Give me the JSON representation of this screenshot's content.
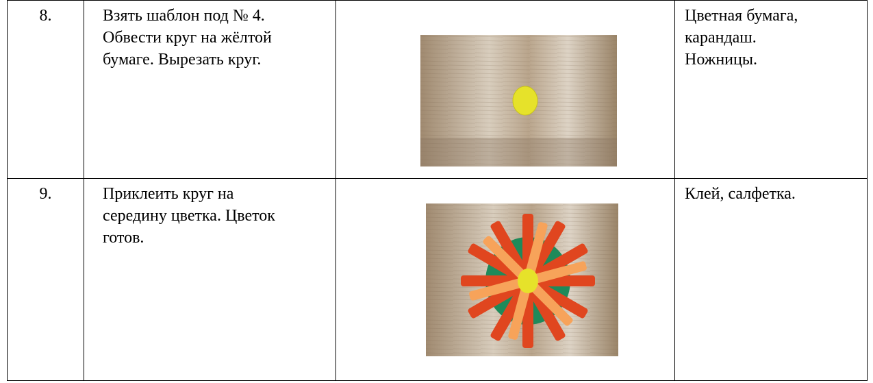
{
  "table": {
    "rows": [
      {
        "number": "8.",
        "description": [
          "Взять шаблон под № 4.",
          "Обвести круг на жёлтой",
          "бумаге. Вырезать круг."
        ],
        "materials": [
          "Цветная бумага,",
          "карандаш.",
          "Ножницы."
        ]
      },
      {
        "number": "9.",
        "description": [
          "Приклеить круг на",
          "середину цветка. Цветок",
          "готов."
        ],
        "materials": [
          "Клей, салфетка."
        ]
      }
    ]
  }
}
